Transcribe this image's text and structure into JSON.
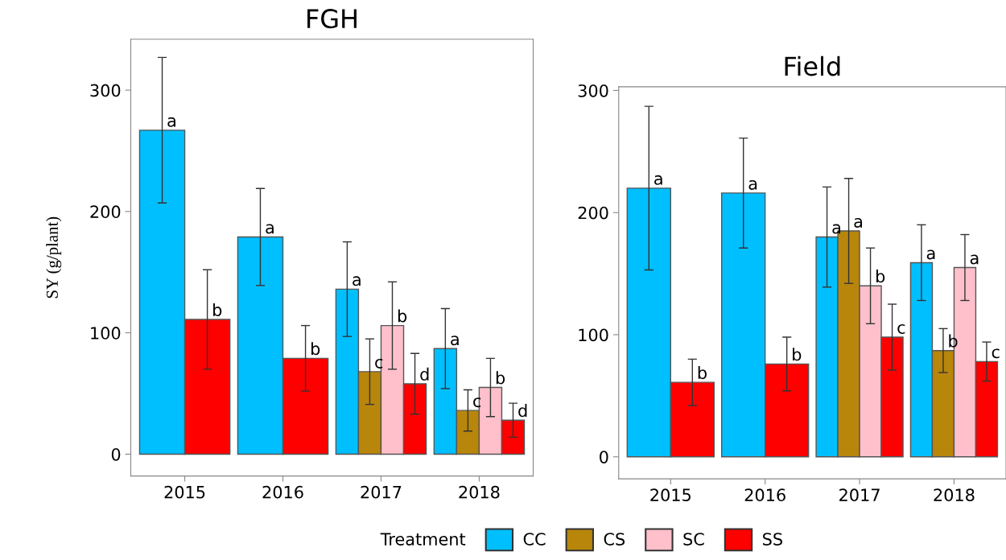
{
  "chart_data": [
    {
      "type": "bar",
      "title": "FGH",
      "ylabel": "SY (g/plant)",
      "categories": [
        "2015",
        "2016",
        "2017",
        "2018"
      ],
      "ylim": [
        -18,
        342
      ],
      "yticks": [
        0,
        100,
        200,
        300
      ],
      "grid": false,
      "legend": "bottom",
      "legend_title": "Treatment",
      "series": [
        {
          "name": "CC",
          "color": "#00bfff",
          "values": [
            267,
            179,
            136,
            87
          ],
          "errors": [
            60,
            40,
            39,
            33
          ],
          "value_labels": [
            "a",
            "a",
            "a",
            "a"
          ]
        },
        {
          "name": "CS",
          "color": "#b8860b",
          "values": [
            null,
            null,
            68,
            36
          ],
          "errors": [
            null,
            null,
            27,
            17
          ],
          "value_labels": [
            null,
            null,
            "c",
            "c"
          ]
        },
        {
          "name": "SC",
          "color": "#ffc0cb",
          "values": [
            null,
            null,
            106,
            55
          ],
          "errors": [
            null,
            null,
            36,
            24
          ],
          "value_labels": [
            null,
            null,
            "b",
            "b"
          ]
        },
        {
          "name": "SS",
          "color": "#ff0000",
          "values": [
            111,
            79,
            58,
            28
          ],
          "errors": [
            41,
            27,
            25,
            14
          ],
          "value_labels": [
            "b",
            "b",
            "d",
            "d"
          ]
        }
      ]
    },
    {
      "type": "bar",
      "title": "Field",
      "categories": [
        "2015",
        "2016",
        "2017",
        "2018"
      ],
      "ylim": [
        -18,
        303
      ],
      "yticks": [
        0,
        100,
        200,
        300
      ],
      "grid": false,
      "series": [
        {
          "color": "#00bfff",
          "values": [
            220,
            216,
            180,
            159
          ],
          "errors": [
            67,
            45,
            41,
            31
          ],
          "value_labels": [
            "a",
            "a",
            "a",
            "a"
          ]
        },
        {
          "color": "#b8860b",
          "values": [
            null,
            null,
            185,
            87
          ],
          "errors": [
            null,
            null,
            43,
            18
          ],
          "value_labels": [
            null,
            null,
            "a",
            "b"
          ]
        },
        {
          "color": "#ffc0cb",
          "values": [
            null,
            null,
            140,
            155
          ],
          "errors": [
            null,
            null,
            31,
            27
          ],
          "value_labels": [
            null,
            null,
            "b",
            "a"
          ]
        },
        {
          "color": "#ff0000",
          "values": [
            61,
            76,
            98,
            78
          ],
          "errors": [
            19,
            22,
            27,
            16
          ],
          "value_labels": [
            "b",
            "b",
            "c",
            "c"
          ]
        }
      ]
    }
  ]
}
